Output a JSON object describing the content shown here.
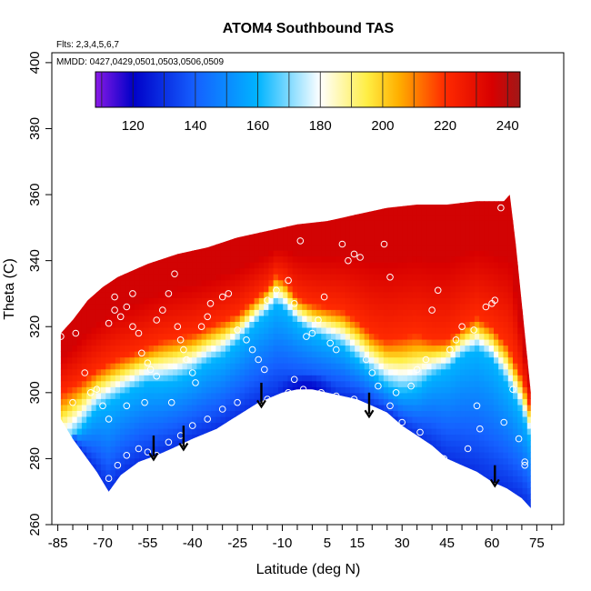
{
  "chart_data": {
    "type": "heatmap",
    "title": "ATOM4 Southbound TAS",
    "xlabel": "Latitude (deg N)",
    "ylabel": "Theta (C)",
    "notes": [
      "Flts: 2,3,4,5,6,7",
      "MMDD: 0427,0429,0501,0503,0506,0509"
    ],
    "xlim": [
      -87,
      84
    ],
    "ylim": [
      260,
      403
    ],
    "x_ticks": [
      -85,
      -70,
      -55,
      -40,
      -25,
      -10,
      5,
      15,
      30,
      45,
      60,
      75
    ],
    "x_minor_ticks": [
      -80,
      -75,
      -65,
      -60,
      -50,
      -45,
      -35,
      -30,
      -20,
      -15,
      -5,
      0,
      10,
      20,
      25,
      35,
      40,
      50,
      55,
      65,
      70,
      80
    ],
    "y_ticks": [
      260,
      280,
      300,
      320,
      340,
      360,
      380,
      400
    ],
    "colorbar": {
      "min": 108,
      "max": 244,
      "ticks": [
        120,
        140,
        160,
        180,
        200,
        220,
        240
      ],
      "stops": [
        [
          108,
          "#8a1ae6"
        ],
        [
          120,
          "#0000c8"
        ],
        [
          140,
          "#1560ff"
        ],
        [
          160,
          "#00b4ff"
        ],
        [
          180,
          "#ffffff"
        ],
        [
          195,
          "#ffee44"
        ],
        [
          205,
          "#ffb000"
        ],
        [
          220,
          "#ff2a00"
        ],
        [
          235,
          "#d80000"
        ],
        [
          244,
          "#a01818"
        ]
      ]
    },
    "field": {
      "domain_top": [
        [
          -84,
          318
        ],
        [
          -80,
          322
        ],
        [
          -75,
          328
        ],
        [
          -70,
          332
        ],
        [
          -65,
          335
        ],
        [
          -60,
          337
        ],
        [
          -55,
          339
        ],
        [
          -45,
          342
        ],
        [
          -35,
          344
        ],
        [
          -25,
          347
        ],
        [
          -15,
          349
        ],
        [
          -5,
          351
        ],
        [
          5,
          352
        ],
        [
          15,
          354
        ],
        [
          25,
          356
        ],
        [
          35,
          357
        ],
        [
          45,
          357
        ],
        [
          55,
          358
        ],
        [
          64,
          358
        ],
        [
          66,
          360
        ],
        [
          68,
          345
        ],
        [
          71,
          318
        ],
        [
          73,
          300
        ],
        [
          73,
          288
        ]
      ],
      "domain_bottom": [
        [
          -84,
          292
        ],
        [
          -80,
          286
        ],
        [
          -76,
          281
        ],
        [
          -72,
          276
        ],
        [
          -68,
          270
        ],
        [
          -64,
          275
        ],
        [
          -58,
          279
        ],
        [
          -52,
          281
        ],
        [
          -47,
          283
        ],
        [
          -40,
          286
        ],
        [
          -32,
          289
        ],
        [
          -25,
          293
        ],
        [
          -18,
          297
        ],
        [
          -10,
          300
        ],
        [
          -5,
          301
        ],
        [
          0,
          301
        ],
        [
          5,
          300
        ],
        [
          10,
          299
        ],
        [
          15,
          298
        ],
        [
          20,
          296
        ],
        [
          25,
          294
        ],
        [
          30,
          290
        ],
        [
          35,
          287
        ],
        [
          40,
          284
        ],
        [
          45,
          280
        ],
        [
          50,
          278
        ],
        [
          55,
          276
        ],
        [
          60,
          273
        ],
        [
          65,
          271
        ],
        [
          70,
          268
        ],
        [
          73,
          265
        ]
      ],
      "t220_contour": [
        [
          -84,
          300
        ],
        [
          -78,
          303
        ],
        [
          -72,
          307
        ],
        [
          -66,
          310
        ],
        [
          -60,
          312
        ],
        [
          -55,
          314
        ],
        [
          -50,
          316
        ],
        [
          -45,
          317
        ],
        [
          -40,
          318
        ],
        [
          -35,
          320
        ],
        [
          -30,
          322
        ],
        [
          -25,
          324
        ],
        [
          -20,
          328
        ],
        [
          -15,
          332
        ],
        [
          -12,
          336
        ],
        [
          -9,
          334
        ],
        [
          -5,
          329
        ],
        [
          0,
          327
        ],
        [
          5,
          326
        ],
        [
          10,
          325
        ],
        [
          15,
          322
        ],
        [
          20,
          318
        ],
        [
          25,
          316
        ],
        [
          30,
          317
        ],
        [
          35,
          318
        ],
        [
          40,
          316
        ],
        [
          45,
          316
        ],
        [
          50,
          320
        ],
        [
          55,
          323
        ],
        [
          60,
          320
        ],
        [
          65,
          315
        ],
        [
          70,
          305
        ],
        [
          73,
          296
        ]
      ],
      "t160_contour": [
        [
          -84,
          282
        ],
        [
          -78,
          288
        ],
        [
          -72,
          295
        ],
        [
          -66,
          298
        ],
        [
          -60,
          301
        ],
        [
          -55,
          303
        ],
        [
          -50,
          303
        ],
        [
          -45,
          304
        ],
        [
          -40,
          306
        ],
        [
          -35,
          309
        ],
        [
          -30,
          311
        ],
        [
          -25,
          315
        ],
        [
          -20,
          320
        ],
        [
          -15,
          324
        ],
        [
          -12,
          327
        ],
        [
          -9,
          325
        ],
        [
          -5,
          321
        ],
        [
          0,
          318
        ],
        [
          5,
          316
        ],
        [
          10,
          314
        ],
        [
          15,
          310
        ],
        [
          20,
          306
        ],
        [
          25,
          302
        ],
        [
          30,
          300
        ],
        [
          35,
          301
        ],
        [
          40,
          305
        ],
        [
          45,
          307
        ],
        [
          50,
          311
        ],
        [
          55,
          313
        ],
        [
          60,
          310
        ],
        [
          65,
          303
        ],
        [
          70,
          294
        ],
        [
          73,
          286
        ]
      ],
      "cold_core": {
        "lat": -2,
        "theta": 301,
        "value": 118
      },
      "value_bands": {
        "top": 236,
        "mid_warm": 220,
        "mid_cool": 160,
        "bottom": 130
      }
    },
    "observation_points": [
      [
        -84,
        317
      ],
      [
        -79,
        318
      ],
      [
        -76,
        306
      ],
      [
        -72,
        301
      ],
      [
        -70,
        296
      ],
      [
        -68,
        292
      ],
      [
        -68,
        321
      ],
      [
        -66,
        325
      ],
      [
        -66,
        329
      ],
      [
        -64,
        323
      ],
      [
        -62,
        326
      ],
      [
        -60,
        330
      ],
      [
        -60,
        320
      ],
      [
        -58,
        318
      ],
      [
        -57,
        312
      ],
      [
        -55,
        309
      ],
      [
        -54,
        307
      ],
      [
        -52,
        305
      ],
      [
        -52,
        322
      ],
      [
        -50,
        325
      ],
      [
        -48,
        330
      ],
      [
        -46,
        336
      ],
      [
        -45,
        320
      ],
      [
        -44,
        316
      ],
      [
        -43,
        313
      ],
      [
        -42,
        310
      ],
      [
        -40,
        306
      ],
      [
        -39,
        303
      ],
      [
        -37,
        320
      ],
      [
        -35,
        323
      ],
      [
        -34,
        327
      ],
      [
        -30,
        329
      ],
      [
        -28,
        330
      ],
      [
        -25,
        319
      ],
      [
        -22,
        316
      ],
      [
        -20,
        313
      ],
      [
        -18,
        310
      ],
      [
        -16,
        307
      ],
      [
        -15,
        328
      ],
      [
        -12,
        331
      ],
      [
        -8,
        334
      ],
      [
        -6,
        327
      ],
      [
        -4,
        346
      ],
      [
        -2,
        317
      ],
      [
        0,
        318
      ],
      [
        2,
        322
      ],
      [
        4,
        329
      ],
      [
        6,
        315
      ],
      [
        8,
        313
      ],
      [
        10,
        345
      ],
      [
        12,
        340
      ],
      [
        14,
        342
      ],
      [
        16,
        341
      ],
      [
        18,
        310
      ],
      [
        20,
        306
      ],
      [
        22,
        302
      ],
      [
        24,
        345
      ],
      [
        26,
        335
      ],
      [
        28,
        300
      ],
      [
        30,
        291
      ],
      [
        33,
        302
      ],
      [
        35,
        307
      ],
      [
        38,
        310
      ],
      [
        40,
        325
      ],
      [
        42,
        331
      ],
      [
        44,
        280
      ],
      [
        46,
        313
      ],
      [
        48,
        316
      ],
      [
        50,
        320
      ],
      [
        52,
        283
      ],
      [
        54,
        319
      ],
      [
        55,
        296
      ],
      [
        56,
        289
      ],
      [
        58,
        326
      ],
      [
        60,
        327
      ],
      [
        61,
        328
      ],
      [
        63,
        356
      ],
      [
        67,
        301
      ],
      [
        69,
        286
      ],
      [
        71,
        279
      ],
      [
        71,
        278
      ],
      [
        -70,
        269
      ],
      [
        -68,
        274
      ],
      [
        -65,
        278
      ],
      [
        -62,
        281
      ],
      [
        -58,
        283
      ],
      [
        -55,
        282
      ],
      [
        -52,
        281
      ],
      [
        -48,
        285
      ],
      [
        -44,
        287
      ],
      [
        -40,
        290
      ],
      [
        -35,
        292
      ],
      [
        -30,
        295
      ],
      [
        -25,
        297
      ],
      [
        -15,
        298
      ],
      [
        -8,
        300
      ],
      [
        -3,
        301
      ],
      [
        3,
        300
      ],
      [
        8,
        299
      ],
      [
        14,
        298
      ],
      [
        -80,
        297
      ],
      [
        -74,
        300
      ],
      [
        -62,
        296
      ],
      [
        -56,
        297
      ],
      [
        -47,
        297
      ],
      [
        -6,
        304
      ],
      [
        26,
        296
      ],
      [
        36,
        288
      ],
      [
        64,
        291
      ]
    ],
    "arrows": [
      {
        "lat": -53,
        "theta_top": 287,
        "theta_bottom": 280
      },
      {
        "lat": -43,
        "theta_top": 290,
        "theta_bottom": 283
      },
      {
        "lat": -17,
        "theta_top": 303,
        "theta_bottom": 296
      },
      {
        "lat": 19,
        "theta_top": 300,
        "theta_bottom": 293
      },
      {
        "lat": 61,
        "theta_top": 278,
        "theta_bottom": 272
      }
    ]
  }
}
